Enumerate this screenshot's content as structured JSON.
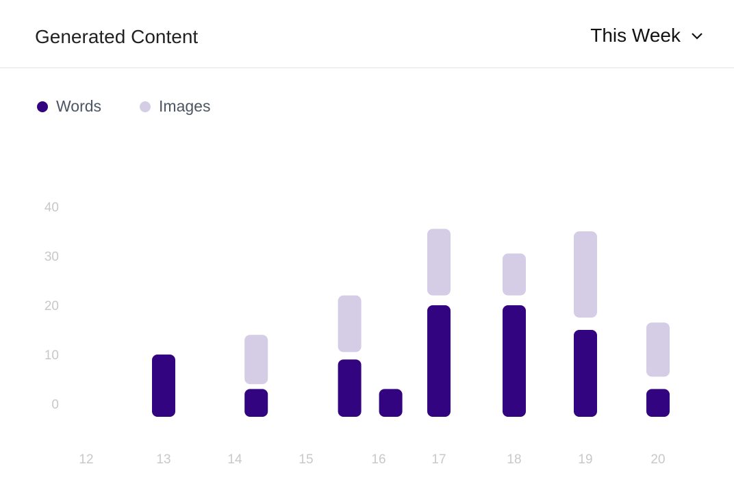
{
  "header": {
    "title": "Generated Content",
    "period": "This Week",
    "period_icon": "chevron-down-icon"
  },
  "colors": {
    "words": "#33047f",
    "images": "#d5cde5"
  },
  "chart_data": {
    "type": "bar",
    "title": "",
    "xlabel": "",
    "ylabel": "",
    "ylim": [
      0,
      40
    ],
    "grid": false,
    "legend_placement": "top-left",
    "y_ticks": [
      "0",
      "10",
      "20",
      "30",
      "40"
    ],
    "x_ticks": [
      "12",
      "13",
      "14",
      "15",
      "16",
      "17",
      "18",
      "19",
      "20"
    ],
    "series": [
      {
        "name": "Words",
        "x": [
          13,
          14.3,
          15.6,
          16.2,
          17,
          18,
          19,
          20
        ],
        "values": [
          10,
          3,
          9,
          3,
          20,
          20,
          15,
          3
        ]
      },
      {
        "name": "Images",
        "x": [
          14.3,
          15.6,
          17,
          18,
          19,
          20
        ],
        "ranges": [
          [
            4,
            14
          ],
          [
            10.5,
            22
          ],
          [
            22,
            35.5
          ],
          [
            22,
            30.5
          ],
          [
            17.5,
            35
          ],
          [
            5.5,
            16.5
          ]
        ]
      }
    ]
  }
}
